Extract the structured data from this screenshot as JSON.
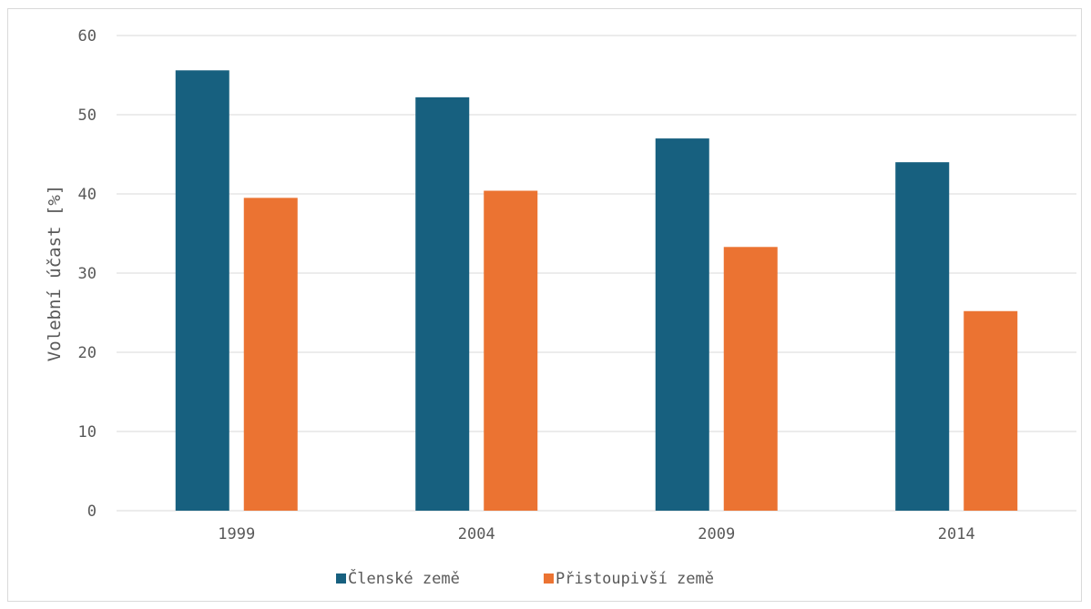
{
  "chart_data": {
    "type": "bar",
    "title": "",
    "xlabel": "",
    "ylabel": "Volební účast [%]",
    "categories": [
      "1999",
      "2004",
      "2009",
      "2014"
    ],
    "series": [
      {
        "name": "Členské země",
        "values": [
          55.6,
          52.2,
          47.0,
          44.0
        ],
        "color": "#17607f"
      },
      {
        "name": "Přistoupivší země",
        "values": [
          39.5,
          40.4,
          33.3,
          25.2
        ],
        "color": "#eb7332"
      }
    ],
    "ylim": [
      0,
      60
    ],
    "yticks": [
      0,
      10,
      20,
      30,
      40,
      50,
      60
    ],
    "grid": true,
    "gridColor": "#d9d9d9",
    "legend_position": "bottom"
  }
}
